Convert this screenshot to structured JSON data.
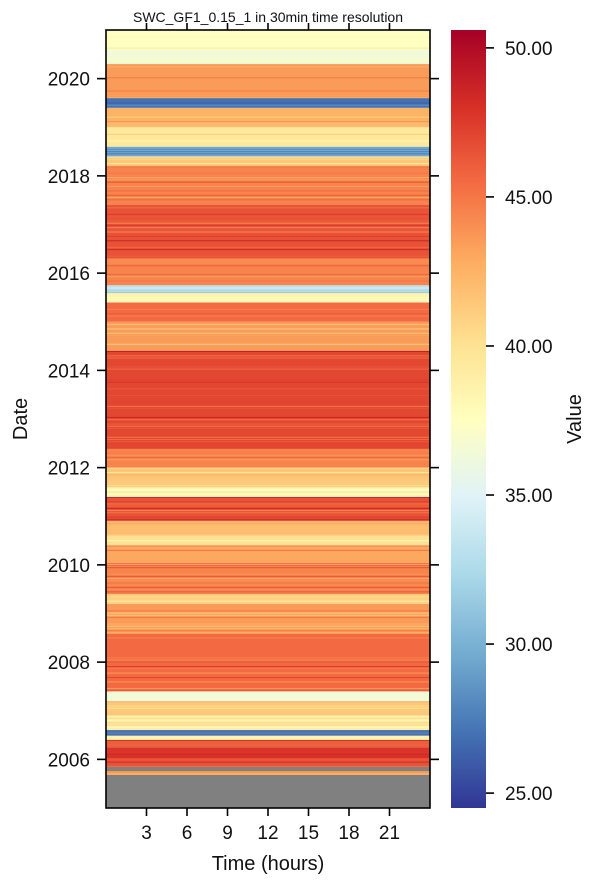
{
  "chart_data": {
    "type": "heatmap",
    "title": "SWC_GF1_0.15_1 in 30min time resolution",
    "xlabel": "Time (hours)",
    "ylabel": "Date",
    "colorbar_label": "Value",
    "x_range": [
      0,
      24
    ],
    "x_ticks": [
      3,
      6,
      9,
      12,
      15,
      18,
      21
    ],
    "x_tick_labels": [
      "3",
      "6",
      "9",
      "12",
      "15",
      "18",
      "21"
    ],
    "y_range": [
      2005.0,
      2021.0
    ],
    "y_ticks": [
      2006,
      2008,
      2010,
      2012,
      2014,
      2016,
      2018,
      2020
    ],
    "y_tick_labels": [
      "2006",
      "2008",
      "2010",
      "2012",
      "2014",
      "2016",
      "2018",
      "2020"
    ],
    "color_range": [
      24.5,
      50.6
    ],
    "colorbar_ticks": [
      25,
      30,
      35,
      40,
      45,
      50
    ],
    "colorbar_tick_labels": [
      "25.00",
      "30.00",
      "35.00",
      "40.00",
      "45.00",
      "50.00"
    ],
    "colormap": "RdYlBu_r",
    "colormap_stops": [
      "#313695",
      "#4575b4",
      "#74add1",
      "#abd9e9",
      "#e0f3f8",
      "#ffffbf",
      "#fee090",
      "#fdae61",
      "#f46d43",
      "#d73027",
      "#a50026"
    ],
    "missing_color": "#808080",
    "missing_data_before": 2005.68,
    "grid": false,
    "row_values": [
      {
        "start": 2005.0,
        "end": 2005.68,
        "value": null
      },
      {
        "start": 2005.68,
        "end": 2005.76,
        "value": 43.5
      },
      {
        "start": 2005.76,
        "end": 2005.85,
        "value": null
      },
      {
        "start": 2005.85,
        "end": 2006.0,
        "value": 46.5
      },
      {
        "start": 2006.0,
        "end": 2006.25,
        "value": 47.8
      },
      {
        "start": 2006.25,
        "end": 2006.4,
        "value": 46.0
      },
      {
        "start": 2006.4,
        "end": 2006.5,
        "value": 38.5
      },
      {
        "start": 2006.5,
        "end": 2006.6,
        "value": 27.5
      },
      {
        "start": 2006.6,
        "end": 2006.9,
        "value": 39.0
      },
      {
        "start": 2006.9,
        "end": 2007.2,
        "value": 41.5
      },
      {
        "start": 2007.2,
        "end": 2007.4,
        "value": 36.5
      },
      {
        "start": 2007.4,
        "end": 2008.6,
        "value": 45.5
      },
      {
        "start": 2008.6,
        "end": 2009.2,
        "value": 43.5
      },
      {
        "start": 2009.2,
        "end": 2009.4,
        "value": 41.0
      },
      {
        "start": 2009.4,
        "end": 2010.0,
        "value": 44.5
      },
      {
        "start": 2010.0,
        "end": 2010.4,
        "value": 43.0
      },
      {
        "start": 2010.4,
        "end": 2010.6,
        "value": 40.0
      },
      {
        "start": 2010.6,
        "end": 2010.9,
        "value": 42.0
      },
      {
        "start": 2010.9,
        "end": 2011.4,
        "value": 46.5
      },
      {
        "start": 2011.4,
        "end": 2011.6,
        "value": 38.0
      },
      {
        "start": 2011.6,
        "end": 2012.0,
        "value": 41.5
      },
      {
        "start": 2012.0,
        "end": 2012.4,
        "value": 44.5
      },
      {
        "start": 2012.4,
        "end": 2014.4,
        "value": 47.0
      },
      {
        "start": 2014.4,
        "end": 2015.0,
        "value": 43.5
      },
      {
        "start": 2015.0,
        "end": 2015.4,
        "value": 45.5
      },
      {
        "start": 2015.4,
        "end": 2015.6,
        "value": 38.5
      },
      {
        "start": 2015.6,
        "end": 2015.75,
        "value": 33.0
      },
      {
        "start": 2015.75,
        "end": 2016.3,
        "value": 44.5
      },
      {
        "start": 2016.3,
        "end": 2017.4,
        "value": 46.5
      },
      {
        "start": 2017.4,
        "end": 2018.2,
        "value": 44.5
      },
      {
        "start": 2018.2,
        "end": 2018.4,
        "value": 41.5
      },
      {
        "start": 2018.4,
        "end": 2018.6,
        "value": 29.5
      },
      {
        "start": 2018.6,
        "end": 2019.0,
        "value": 39.5
      },
      {
        "start": 2019.0,
        "end": 2019.4,
        "value": 42.5
      },
      {
        "start": 2019.4,
        "end": 2019.6,
        "value": 27.0
      },
      {
        "start": 2019.6,
        "end": 2020.3,
        "value": 43.5
      },
      {
        "start": 2020.3,
        "end": 2020.6,
        "value": 37.0
      },
      {
        "start": 2020.6,
        "end": 2021.0,
        "value": 37.5
      }
    ]
  }
}
